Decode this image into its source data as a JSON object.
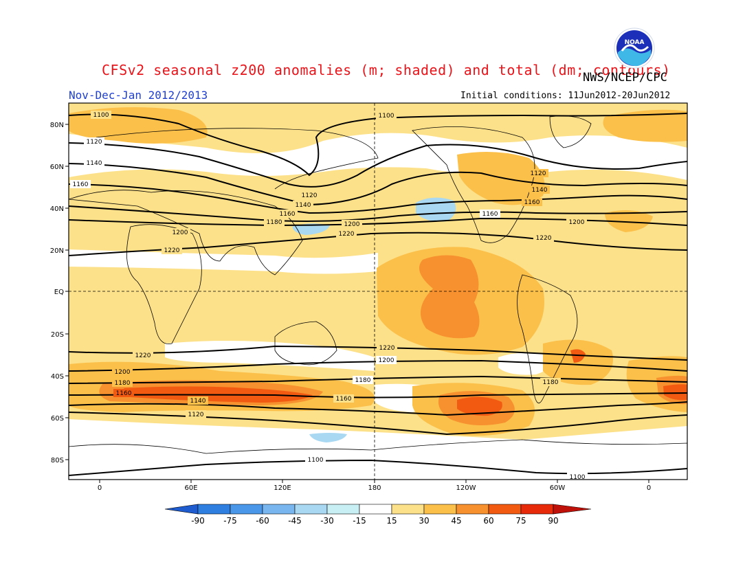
{
  "title": "CFSv2 seasonal z200 anomalies (m; shaded) and total (dm; contours)",
  "subtitle": "Nov-Dec-Jan 2012/2013",
  "agency": "NWS/NCEP/CPC",
  "initial_conditions": "Initial conditions: 11Jun2012-20Jun2012",
  "logo_text": "NOAA",
  "map": {
    "projection": "cylindrical equidistant",
    "lon_ticks": [
      "0",
      "60E",
      "120E",
      "180",
      "120W",
      "60W",
      "0"
    ],
    "lat_ticks": [
      "80N",
      "60N",
      "40N",
      "20N",
      "EQ",
      "20S",
      "40S",
      "60S",
      "80S"
    ],
    "reference_lines": [
      "EQ",
      "180"
    ],
    "contours_dm": [
      {
        "level": "1100",
        "labels": [
          "1100",
          "1100",
          "1100",
          "1100"
        ]
      },
      {
        "level": "1120",
        "labels": [
          "1120",
          "1120",
          "1120",
          "1120"
        ]
      },
      {
        "level": "1140",
        "labels": [
          "1140",
          "1140",
          "1140",
          "1140"
        ]
      },
      {
        "level": "1160",
        "labels": [
          "1160",
          "1160",
          "1160",
          "1160",
          "1160",
          "1160"
        ]
      },
      {
        "level": "1180",
        "labels": [
          "1180",
          "1180",
          "1180",
          "1180"
        ]
      },
      {
        "level": "1200",
        "labels": [
          "1200",
          "1200",
          "1200",
          "1200",
          "1200"
        ]
      },
      {
        "level": "1220",
        "labels": [
          "1220",
          "1220",
          "1220",
          "1220",
          "1220"
        ]
      }
    ]
  },
  "colorbar": {
    "labels": [
      "-90",
      "-75",
      "-60",
      "-45",
      "-30",
      "-15",
      "15",
      "30",
      "45",
      "60",
      "75",
      "90"
    ],
    "colors": [
      "#1f5ccf",
      "#2f7fe0",
      "#4a97ea",
      "#79b6f0",
      "#a8d8f2",
      "#c8f0f4",
      "#ffffff",
      "#fde18a",
      "#fbc04a",
      "#f7902e",
      "#f25a12",
      "#e62a0a",
      "#c0100a"
    ]
  }
}
